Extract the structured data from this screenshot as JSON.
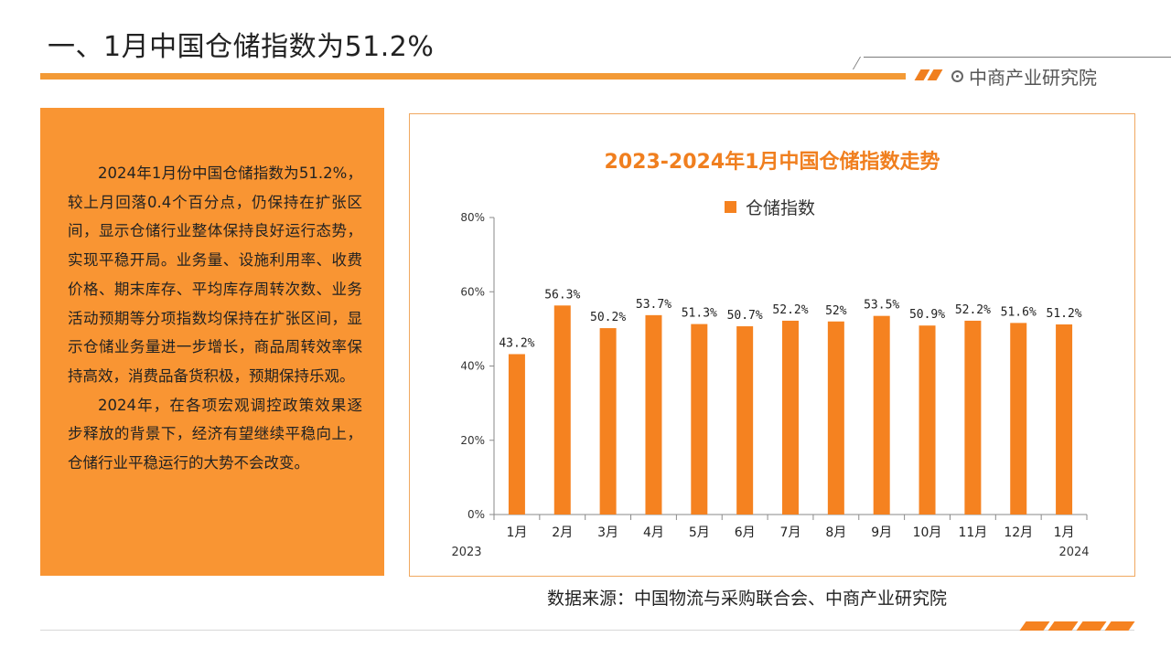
{
  "slide": {
    "title": "一、1月中国仓储指数为51.2%",
    "brand": "中商产业研究院",
    "paragraphs": [
      "2024年1月份中国仓储指数为51.2%，较上月回落0.4个百分点，仍保持在扩张区间，显示仓储行业整体保持良好运行态势，实现平稳开局。业务量、设施利用率、收费价格、期末库存、平均库存周转次数、业务活动预期等分项指数均保持在扩张区间，显示仓储业务量进一步增长，商品周转效率保持高效，消费品备货积极，预期保持乐观。",
      "2024年，在各项宏观调控政策效果逐步释放的背景下，经济有望继续平稳向上，仓储行业平稳运行的大势不会改变。"
    ],
    "source": "数据来源：中国物流与采购联合会、中商产业研究院"
  },
  "colors": {
    "accent": "#f58220",
    "text_panel": "#f99533",
    "title_orange": "#f07f1f"
  },
  "chart_data": {
    "type": "bar",
    "title": "2023-2024年1月中国仓储指数走势",
    "categories": [
      "1月",
      "2月",
      "3月",
      "4月",
      "5月",
      "6月",
      "7月",
      "8月",
      "9月",
      "10月",
      "11月",
      "12月",
      "1月"
    ],
    "series": [
      {
        "name": "仓储指数",
        "values": [
          43.2,
          56.3,
          50.2,
          53.7,
          51.3,
          50.7,
          52.2,
          52.0,
          53.5,
          50.9,
          52.2,
          51.6,
          51.2
        ],
        "labels": [
          "43.2%",
          "56.3%",
          "50.2%",
          "53.7%",
          "51.3%",
          "50.7%",
          "52.2%",
          "52%",
          "53.5%",
          "50.9%",
          "52.2%",
          "51.6%",
          "51.2%"
        ]
      }
    ],
    "year_labels": [
      "2023",
      "2024"
    ],
    "yticks": [
      "0%",
      "20%",
      "40%",
      "60%",
      "80%"
    ],
    "ylim": [
      0,
      80
    ],
    "legend_position": "top",
    "grid": false
  }
}
